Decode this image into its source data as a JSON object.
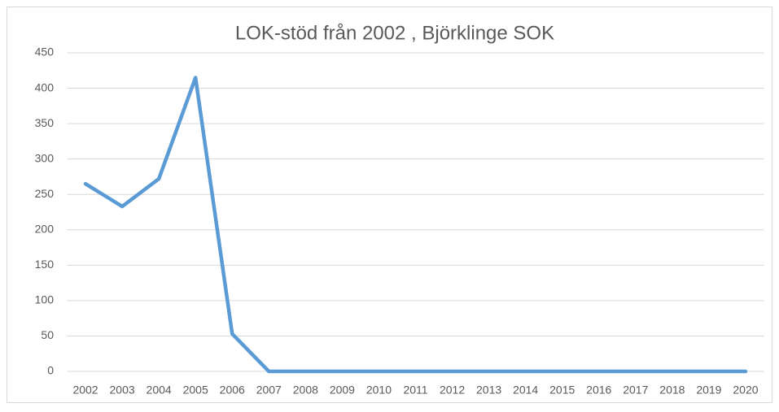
{
  "chart_data": {
    "type": "line",
    "title": "LOK-stöd från 2002 , Björklinge SOK",
    "categories": [
      "2002",
      "2003",
      "2004",
      "2005",
      "2006",
      "2007",
      "2008",
      "2009",
      "2010",
      "2011",
      "2012",
      "2013",
      "2014",
      "2015",
      "2016",
      "2017",
      "2018",
      "2019",
      "2020"
    ],
    "values": [
      265,
      233,
      272,
      415,
      53,
      0,
      0,
      0,
      0,
      0,
      0,
      0,
      0,
      0,
      0,
      0,
      0,
      0,
      0
    ],
    "color": "#5b9bd5",
    "ylim": [
      0,
      450
    ],
    "yticks": [
      0,
      50,
      100,
      150,
      200,
      250,
      300,
      350,
      400,
      450
    ],
    "grid": true
  }
}
